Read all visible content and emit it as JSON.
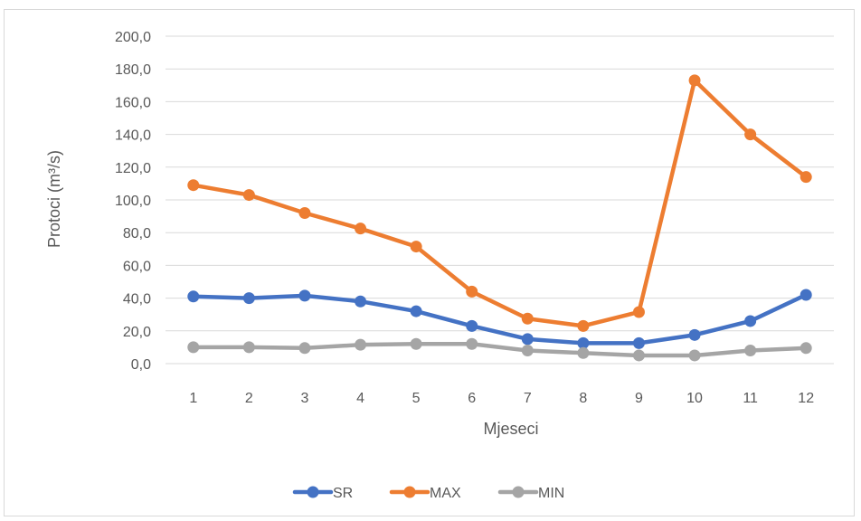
{
  "chart_data": {
    "type": "line",
    "title": "",
    "xlabel": "Mjeseci",
    "ylabel": "Protoci (m³/s)",
    "categories": [
      "1",
      "2",
      "3",
      "4",
      "5",
      "6",
      "7",
      "8",
      "9",
      "10",
      "11",
      "12"
    ],
    "ylim": [
      0,
      200
    ],
    "yticks": [
      "0,0",
      "20,0",
      "40,0",
      "60,0",
      "80,0",
      "100,0",
      "120,0",
      "140,0",
      "160,0",
      "180,0",
      "200,0"
    ],
    "grid": true,
    "legend_position": "bottom",
    "series": [
      {
        "name": "SR",
        "color": "#4472c4",
        "values": [
          41.0,
          40.0,
          41.5,
          38.0,
          32.0,
          23.0,
          15.0,
          12.5,
          12.5,
          17.5,
          26.0,
          42.0
        ]
      },
      {
        "name": "MAX",
        "color": "#ed7d31",
        "values": [
          109.0,
          103.0,
          92.0,
          82.5,
          71.5,
          44.0,
          27.5,
          23.0,
          31.5,
          173.0,
          140.0,
          114.0
        ]
      },
      {
        "name": "MIN",
        "color": "#a5a5a5",
        "values": [
          10.0,
          10.0,
          9.5,
          11.5,
          12.0,
          12.0,
          8.0,
          6.5,
          5.0,
          5.0,
          8.0,
          9.5
        ]
      }
    ]
  }
}
